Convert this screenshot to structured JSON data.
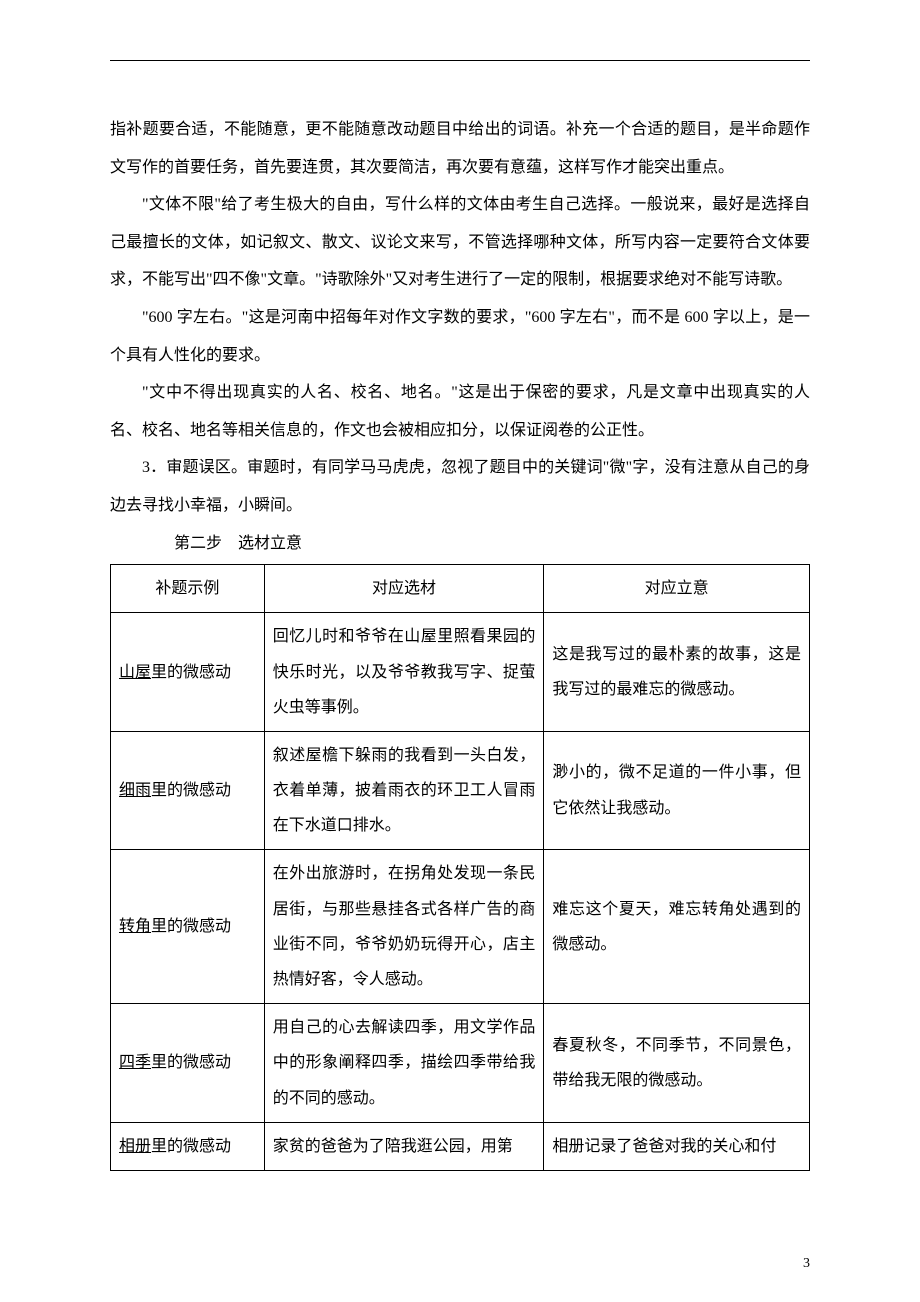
{
  "paragraphs": {
    "p1": "指补题要合适，不能随意，更不能随意改动题目中给出的词语。补充一个合适的题目，是半命题作文写作的首要任务，首先要连贯，其次要简洁，再次要有意蕴，这样写作才能突出重点。",
    "p2": "\"文体不限\"给了考生极大的自由，写什么样的文体由考生自己选择。一般说来，最好是选择自己最擅长的文体，如记叙文、散文、议论文来写，不管选择哪种文体，所写内容一定要符合文体要求，不能写出\"四不像\"文章。\"诗歌除外\"又对考生进行了一定的限制，根据要求绝对不能写诗歌。",
    "p3": "\"600 字左右。\"这是河南中招每年对作文字数的要求，\"600 字左右\"，而不是 600 字以上，是一个具有人性化的要求。",
    "p4": "\"文中不得出现真实的人名、校名、地名。\"这是出于保密的要求，凡是文章中出现真实的人名、校名、地名等相关信息的，作文也会被相应扣分，以保证阅卷的公正性。",
    "p5": "3．审题误区。审题时，有同学马马虎虎，忽视了题目中的关键词\"微\"字，没有注意从自己的身边去寻找小幸福，小瞬间。",
    "step": "第二步　选材立意"
  },
  "table_headers": {
    "h1": "补题示例",
    "h2": "对应选材",
    "h3": "对应立意"
  },
  "table_rows": [
    {
      "title_u": "山屋",
      "title_rest": "里的微感动",
      "material": "回忆儿时和爷爷在山屋里照看果园的快乐时光，以及爷爷教我写字、捉萤火虫等事例。",
      "intent": "这是我写过的最朴素的故事，这是我写过的最难忘的微感动。"
    },
    {
      "title_u": "细雨",
      "title_rest": "里的微感动",
      "material": "叙述屋檐下躲雨的我看到一头白发，衣着单薄，披着雨衣的环卫工人冒雨在下水道口排水。",
      "intent": "渺小的，微不足道的一件小事，但它依然让我感动。"
    },
    {
      "title_u": "转角",
      "title_rest": "里的微感动",
      "material": "在外出旅游时，在拐角处发现一条民居街，与那些悬挂各式各样广告的商业街不同，爷爷奶奶玩得开心，店主热情好客，令人感动。",
      "intent": "难忘这个夏天，难忘转角处遇到的微感动。"
    },
    {
      "title_u": "四季",
      "title_rest": "里的微感动",
      "material": "用自己的心去解读四季，用文学作品中的形象阐释四季，描绘四季带给我的不同的感动。",
      "intent": "春夏秋冬，不同季节，不同景色，带给我无限的微感动。"
    },
    {
      "title_u": "相册",
      "title_rest": "里的微感动",
      "material": "家贫的爸爸为了陪我逛公园，用第",
      "intent": "相册记录了爸爸对我的关心和付"
    }
  ],
  "page_number": "3"
}
